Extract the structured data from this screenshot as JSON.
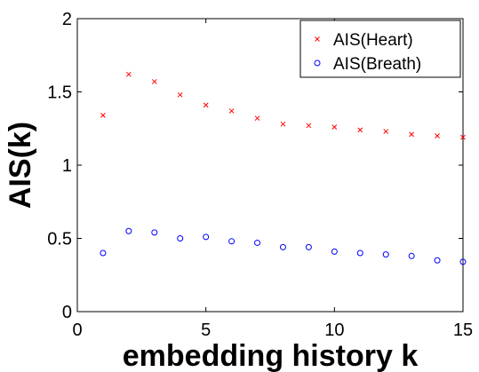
{
  "chart_data": {
    "type": "scatter",
    "title": "",
    "xlabel": "embedding history k",
    "ylabel": "AIS(k)",
    "xlim": [
      0,
      15
    ],
    "ylim": [
      0,
      2
    ],
    "xticks": [
      0,
      5,
      10,
      15
    ],
    "yticks": [
      0,
      0.5,
      1,
      1.5,
      2
    ],
    "xtick_labels": [
      "0",
      "5",
      "10",
      "15"
    ],
    "ytick_labels": [
      "0",
      "0.5",
      "1",
      "1.5",
      "2"
    ],
    "grid": false,
    "legend_position": "top-right",
    "series": [
      {
        "name": "AIS(Heart)",
        "marker": "x",
        "color": "#ff0000",
        "x": [
          1,
          2,
          3,
          4,
          5,
          6,
          7,
          8,
          9,
          10,
          11,
          12,
          13,
          14,
          15
        ],
        "y": [
          1.34,
          1.62,
          1.57,
          1.48,
          1.41,
          1.37,
          1.32,
          1.28,
          1.27,
          1.26,
          1.24,
          1.23,
          1.21,
          1.2,
          1.19
        ]
      },
      {
        "name": "AIS(Breath)",
        "marker": "o",
        "color": "#0000ff",
        "x": [
          1,
          2,
          3,
          4,
          5,
          6,
          7,
          8,
          9,
          10,
          11,
          12,
          13,
          14,
          15
        ],
        "y": [
          0.4,
          0.55,
          0.54,
          0.5,
          0.51,
          0.48,
          0.47,
          0.44,
          0.44,
          0.41,
          0.4,
          0.39,
          0.38,
          0.35,
          0.34
        ]
      }
    ]
  }
}
